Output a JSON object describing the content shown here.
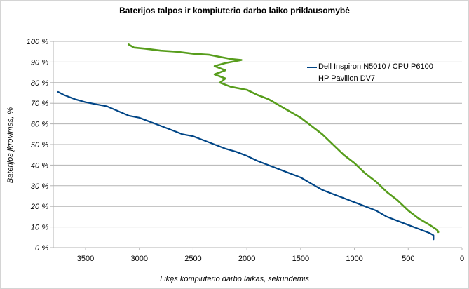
{
  "chart_data": {
    "type": "line",
    "title": "Baterijos talpos ir kompiuterio darbo laiko priklausomybė",
    "xlabel": "Likęs kompiuterio darbo laikas, sekundėmis",
    "ylabel": "Baterijos įkrovimas, %",
    "xlim": [
      3800,
      0
    ],
    "ylim": [
      0,
      100
    ],
    "x_reversed": true,
    "x_ticks": [
      3500,
      3000,
      2500,
      2000,
      1500,
      1000,
      500,
      0
    ],
    "x_tick_labels": [
      "3500",
      "3000",
      "2500",
      "2000",
      "1500",
      "1000",
      "500",
      "0"
    ],
    "y_ticks": [
      0,
      10,
      20,
      30,
      40,
      50,
      60,
      70,
      80,
      90,
      100
    ],
    "y_tick_labels": [
      "0 %",
      "10 %",
      "20 %",
      "30 %",
      "40 %",
      "50 %",
      "60 %",
      "70 %",
      "80 %",
      "90 %",
      "100 %"
    ],
    "grid": "horizontal",
    "legend_position": "right",
    "series": [
      {
        "name": "Dell Inspiron N5010 / CPU P6100",
        "color": "#004586",
        "points": [
          [
            3755,
            75.5
          ],
          [
            3700,
            74
          ],
          [
            3600,
            72
          ],
          [
            3500,
            70.5
          ],
          [
            3400,
            69.5
          ],
          [
            3300,
            68.5
          ],
          [
            3100,
            64
          ],
          [
            3000,
            63
          ],
          [
            2900,
            61
          ],
          [
            2800,
            59
          ],
          [
            2700,
            57
          ],
          [
            2600,
            55
          ],
          [
            2500,
            54
          ],
          [
            2400,
            52
          ],
          [
            2300,
            50
          ],
          [
            2200,
            48
          ],
          [
            2100,
            46.5
          ],
          [
            2000,
            44.5
          ],
          [
            1900,
            42
          ],
          [
            1800,
            40
          ],
          [
            1700,
            38
          ],
          [
            1600,
            36
          ],
          [
            1500,
            34
          ],
          [
            1400,
            31
          ],
          [
            1300,
            28
          ],
          [
            1200,
            26
          ],
          [
            1100,
            24
          ],
          [
            1000,
            22
          ],
          [
            900,
            20
          ],
          [
            800,
            18
          ],
          [
            700,
            15
          ],
          [
            600,
            13
          ],
          [
            500,
            11
          ],
          [
            400,
            9
          ],
          [
            300,
            7
          ],
          [
            265,
            6
          ],
          [
            265,
            4
          ]
        ]
      },
      {
        "name": "HP Pavilion DV7",
        "color": "#579d1c",
        "points": [
          [
            3100,
            98.5
          ],
          [
            3050,
            97
          ],
          [
            2950,
            96.5
          ],
          [
            2800,
            95.5
          ],
          [
            2650,
            95
          ],
          [
            2500,
            94
          ],
          [
            2350,
            93.5
          ],
          [
            2250,
            92.5
          ],
          [
            2150,
            91.5
          ],
          [
            2050,
            91
          ],
          [
            2200,
            89.5
          ],
          [
            2300,
            88
          ],
          [
            2200,
            86
          ],
          [
            2300,
            84
          ],
          [
            2200,
            82
          ],
          [
            2250,
            80
          ],
          [
            2150,
            78
          ],
          [
            2000,
            76.5
          ],
          [
            1900,
            74
          ],
          [
            1800,
            72
          ],
          [
            1700,
            69
          ],
          [
            1600,
            66
          ],
          [
            1500,
            63
          ],
          [
            1400,
            59
          ],
          [
            1300,
            55
          ],
          [
            1200,
            50
          ],
          [
            1100,
            45
          ],
          [
            1000,
            41
          ],
          [
            900,
            36
          ],
          [
            800,
            32
          ],
          [
            700,
            27
          ],
          [
            600,
            23
          ],
          [
            500,
            18
          ],
          [
            400,
            14
          ],
          [
            300,
            11
          ],
          [
            230,
            8.5
          ],
          [
            220,
            7.5
          ]
        ]
      }
    ]
  }
}
